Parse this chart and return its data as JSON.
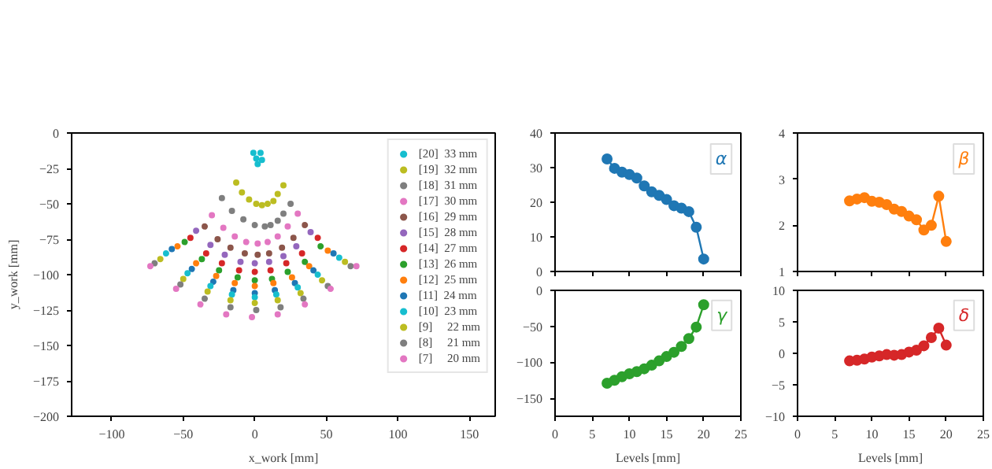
{
  "chart_data": [
    {
      "type": "scatter",
      "xlabel": "x_work [mm]",
      "ylabel": "y_work [mm]",
      "xlim": [
        -128,
        168
      ],
      "ylim": [
        -200,
        0
      ],
      "xticks": [
        -100,
        -50,
        0,
        50,
        100,
        150
      ],
      "yticks": [
        -200,
        -175,
        -150,
        -125,
        -100,
        -75,
        -50,
        -25,
        0
      ],
      "marker": "circle",
      "legend": "top right",
      "grid": false,
      "series": [
        {
          "name": "[20]  33 mm",
          "color": "#17becf",
          "x": [
            -1,
            4,
            1,
            5,
            2
          ],
          "values": [
            -14,
            -14,
            -18,
            -19,
            -22
          ]
        },
        {
          "name": "[19]  32 mm",
          "color": "#bcbd22",
          "x": [
            -13,
            -9,
            -4,
            1,
            5,
            9,
            13,
            16,
            20
          ],
          "values": [
            -35,
            -42,
            -47,
            -50,
            -51,
            -50,
            -48,
            -43,
            -37
          ]
        },
        {
          "name": "[18]  31 mm",
          "color": "#7f7f7f",
          "x": [
            -23,
            -16,
            -8,
            0,
            7,
            11,
            16,
            20,
            25
          ],
          "values": [
            -46,
            -55,
            -61,
            -65,
            -66,
            -65,
            -62,
            -57,
            -50
          ]
        },
        {
          "name": "[17]  30 mm",
          "color": "#e377c2",
          "x": [
            -30,
            -22,
            -14,
            -6,
            2,
            9,
            16,
            23,
            30
          ],
          "values": [
            -58,
            -67,
            -73,
            -77,
            -78,
            -77,
            -73,
            -66,
            -57
          ]
        },
        {
          "name": "[16]  29 mm",
          "color": "#8c564b",
          "x": [
            -35,
            -26,
            -17,
            -7,
            2,
            10,
            19,
            27,
            35
          ],
          "values": [
            -66,
            -75,
            -81,
            -85,
            -86,
            -85,
            -81,
            -74,
            -65
          ]
        },
        {
          "name": "[15]  28 mm",
          "color": "#9467bd",
          "x": [
            -41,
            -31,
            -21,
            -10,
            0,
            10,
            20,
            29,
            39
          ],
          "values": [
            -69,
            -79,
            -86,
            -91,
            -92,
            -91,
            -87,
            -80,
            -70
          ]
        },
        {
          "name": "[14]  27 mm",
          "color": "#d62728",
          "x": [
            -45,
            -34,
            -23,
            -11,
            0,
            11,
            22,
            33,
            44
          ],
          "values": [
            -74,
            -85,
            -92,
            -97,
            -98,
            -97,
            -92,
            -85,
            -74
          ]
        },
        {
          "name": "[13]  26 mm",
          "color": "#2ca02c",
          "x": [
            -49,
            -37,
            -25,
            -12,
            0,
            12,
            23,
            35,
            46
          ],
          "values": [
            -77,
            -89,
            -97,
            -102,
            -104,
            -103,
            -98,
            -91,
            -80
          ]
        },
        {
          "name": "[12]  25 mm",
          "color": "#ff7f0e",
          "x": [
            -54,
            -41,
            -27,
            -14,
            0,
            13,
            26,
            38,
            51
          ],
          "values": [
            -80,
            -92,
            -101,
            -106,
            -108,
            -106,
            -102,
            -94,
            -83
          ]
        },
        {
          "name": "[11]  24 mm",
          "color": "#1f77b4",
          "x": [
            -58,
            -44,
            -29,
            -15,
            0,
            14,
            28,
            41,
            55
          ],
          "values": [
            -82,
            -96,
            -105,
            -111,
            -113,
            -111,
            -106,
            -97,
            -85
          ]
        },
        {
          "name": "[10]  23 mm",
          "color": "#17becf",
          "x": [
            -62,
            -47,
            -31,
            -16,
            0,
            15,
            30,
            44,
            59
          ],
          "values": [
            -85,
            -99,
            -108,
            -114,
            -116,
            -114,
            -109,
            -100,
            -88
          ]
        },
        {
          "name": "[9]     22 mm",
          "color": "#bcbd22",
          "x": [
            -66,
            -50,
            -33,
            -17,
            0,
            16,
            32,
            47,
            63
          ],
          "values": [
            -89,
            -103,
            -112,
            -118,
            -120,
            -118,
            -113,
            -104,
            -91
          ]
        },
        {
          "name": "[8]     21 mm",
          "color": "#7f7f7f",
          "x": [
            -70,
            -52,
            -35,
            -17,
            1,
            18,
            34,
            51,
            67
          ],
          "values": [
            -92,
            -107,
            -117,
            -123,
            -125,
            -123,
            -117,
            -108,
            -94
          ]
        },
        {
          "name": "[7]     20 mm",
          "color": "#e377c2",
          "x": [
            -73,
            -55,
            -38,
            -20,
            -2,
            16,
            35,
            53,
            71
          ],
          "values": [
            -94,
            -110,
            -121,
            -128,
            -130,
            -128,
            -121,
            -110,
            -94
          ]
        }
      ]
    },
    {
      "type": "line",
      "marker": "circle",
      "xlim": [
        0,
        25
      ],
      "xticks": [
        0,
        5,
        10,
        15,
        20,
        25
      ],
      "ylim": [
        0,
        40
      ],
      "yticks": [
        0,
        10,
        20,
        30,
        40
      ],
      "tick_labels": "y",
      "grid": false,
      "annotations": [
        "α"
      ],
      "x": [
        7,
        8,
        9,
        10,
        11,
        12,
        13,
        14,
        15,
        16,
        17,
        18,
        19,
        20
      ],
      "series": [
        {
          "color": "#1f77b4",
          "values": [
            32.5,
            29.8,
            28.7,
            28.0,
            27.0,
            24.7,
            23.0,
            22.0,
            20.8,
            19.0,
            18.3,
            17.3,
            12.8,
            3.6
          ]
        }
      ]
    },
    {
      "type": "line",
      "marker": "circle",
      "xlim": [
        0,
        25
      ],
      "xticks": [
        0,
        5,
        10,
        15,
        20,
        25
      ],
      "ylim": [
        1,
        4
      ],
      "yticks": [
        1,
        2,
        3,
        4
      ],
      "tick_labels": "y",
      "grid": false,
      "annotations": [
        "β"
      ],
      "x": [
        7,
        8,
        9,
        10,
        11,
        12,
        13,
        14,
        15,
        16,
        17,
        18,
        19,
        20
      ],
      "series": [
        {
          "color": "#ff7f0e",
          "values": [
            2.53,
            2.57,
            2.6,
            2.52,
            2.5,
            2.45,
            2.35,
            2.3,
            2.2,
            2.12,
            1.9,
            2.0,
            2.63,
            1.65
          ]
        }
      ]
    },
    {
      "type": "line",
      "marker": "circle",
      "xlabel": "Levels [mm]",
      "xlim": [
        0,
        25
      ],
      "xticks": [
        0,
        5,
        10,
        15,
        20,
        25
      ],
      "ylim": [
        -175,
        0
      ],
      "yticks": [
        -150,
        -100,
        -50,
        0
      ],
      "grid": false,
      "annotations": [
        "γ"
      ],
      "x": [
        7,
        8,
        9,
        10,
        11,
        12,
        13,
        14,
        15,
        16,
        17,
        18,
        19,
        20
      ],
      "series": [
        {
          "color": "#2ca02c",
          "values": [
            -129,
            -125,
            -120,
            -116,
            -113,
            -109,
            -104,
            -98,
            -92,
            -86,
            -78,
            -67,
            -51,
            -20
          ]
        }
      ]
    },
    {
      "type": "line",
      "marker": "circle",
      "xlabel": "Levels [mm]",
      "xlim": [
        0,
        25
      ],
      "xticks": [
        0,
        5,
        10,
        15,
        20,
        25
      ],
      "ylim": [
        -10,
        10
      ],
      "yticks": [
        -10,
        -5,
        0,
        5,
        10
      ],
      "grid": false,
      "annotations": [
        "δ"
      ],
      "x": [
        7,
        8,
        9,
        10,
        11,
        12,
        13,
        14,
        15,
        16,
        17,
        18,
        19,
        20
      ],
      "series": [
        {
          "color": "#d62728",
          "values": [
            -1.2,
            -1.1,
            -0.9,
            -0.6,
            -0.4,
            -0.2,
            -0.3,
            -0.2,
            0.2,
            0.5,
            1.2,
            2.5,
            4.0,
            1.3
          ]
        }
      ]
    }
  ]
}
